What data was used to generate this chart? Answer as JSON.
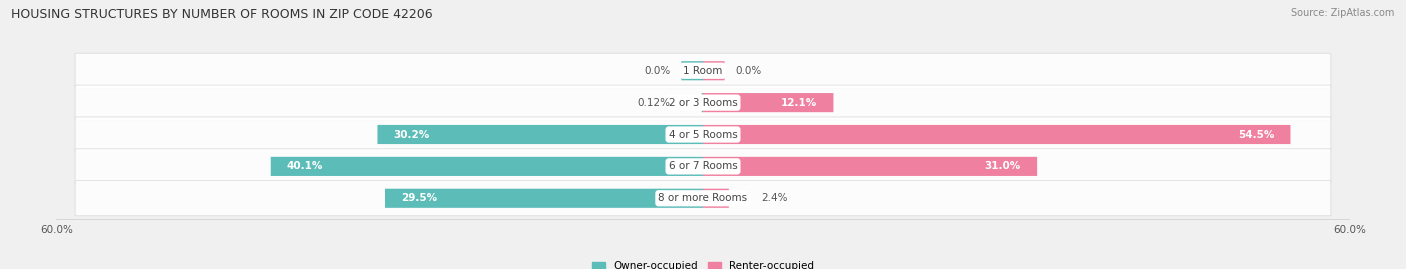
{
  "title": "HOUSING STRUCTURES BY NUMBER OF ROOMS IN ZIP CODE 42206",
  "source": "Source: ZipAtlas.com",
  "categories": [
    "1 Room",
    "2 or 3 Rooms",
    "4 or 5 Rooms",
    "6 or 7 Rooms",
    "8 or more Rooms"
  ],
  "owner_values": [
    0.0,
    0.12,
    30.2,
    40.1,
    29.5
  ],
  "renter_values": [
    0.0,
    12.1,
    54.5,
    31.0,
    2.4
  ],
  "owner_labels": [
    "0.0%",
    "0.12%",
    "30.2%",
    "40.1%",
    "29.5%"
  ],
  "renter_labels": [
    "0.0%",
    "12.1%",
    "54.5%",
    "31.0%",
    "2.4%"
  ],
  "owner_color": "#5bbcb8",
  "renter_color": "#f080a0",
  "axis_limit": 60.0,
  "x_tick_label": "60.0%",
  "bg_color": "#f0f0f0",
  "row_bg_color": "#e8e8e8",
  "legend_owner": "Owner-occupied",
  "legend_renter": "Renter-occupied",
  "title_fontsize": 9,
  "label_fontsize": 7.5,
  "source_fontsize": 7
}
